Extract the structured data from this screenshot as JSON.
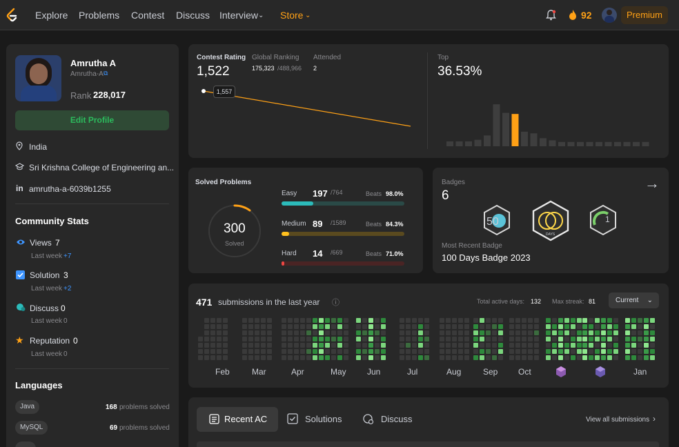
{
  "nav": {
    "items": [
      "Explore",
      "Problems",
      "Contest",
      "Discuss",
      "Interview",
      "Store"
    ],
    "streak": "92",
    "premium": "Premium"
  },
  "profile": {
    "name": "Amrutha A",
    "username": "Amrutha-A",
    "rank_label": "Rank",
    "rank": "228,017",
    "edit_button": "Edit Profile",
    "location": "India",
    "school": "Sri Krishna College of Engineering an...",
    "linkedin": "amrutha-a-6039b1255"
  },
  "community": {
    "title": "Community Stats",
    "stats": [
      {
        "label": "Views",
        "value": "7",
        "week_label": "Last week",
        "week": "+7"
      },
      {
        "label": "Solution",
        "value": "3",
        "week_label": "Last week",
        "week": "+2"
      },
      {
        "label": "Discuss",
        "value": "0",
        "week_label": "Last week",
        "week": "0"
      },
      {
        "label": "Reputation",
        "value": "0",
        "week_label": "Last week",
        "week": "0"
      }
    ]
  },
  "languages": {
    "title": "Languages",
    "items": [
      {
        "name": "Java",
        "count": "168",
        "suffix": "problems solved"
      },
      {
        "name": "MySQL",
        "count": "69",
        "suffix": "problems solved"
      }
    ]
  },
  "contest": {
    "rating_label": "Contest Rating",
    "rating": "1,522",
    "global_label": "Global Ranking",
    "global_rank": "175,323",
    "global_total": "/488,966",
    "attended_label": "Attended",
    "attended": "2",
    "tooltip": "1,557",
    "top_label": "Top",
    "top_value": "36.53%",
    "histogram_heights": [
      0.09,
      0.09,
      0.09,
      0.12,
      0.2,
      0.78,
      0.62,
      0.6,
      0.27,
      0.24,
      0.15,
      0.11,
      0.08,
      0.08,
      0.08,
      0.08,
      0.08,
      0.08,
      0.08,
      0.08,
      0.08,
      0.08
    ],
    "histogram_highlight": 7
  },
  "solved": {
    "title": "Solved Problems",
    "total": "300",
    "total_label": "Solved",
    "difficulties": [
      {
        "name": "Easy",
        "solved": "197",
        "total": "/764",
        "beats_label": "Beats",
        "beats": "98.0%",
        "fraction": 0.26,
        "color": "#2cbbba",
        "track": "#2a4a47"
      },
      {
        "name": "Medium",
        "solved": "89",
        "total": "/1589",
        "beats_label": "Beats",
        "beats": "84.3%",
        "fraction": 0.06,
        "color": "#ffc01e",
        "track": "#5a4a1f"
      },
      {
        "name": "Hard",
        "solved": "14",
        "total": "/669",
        "beats_label": "Beats",
        "beats": "71.0%",
        "fraction": 0.02,
        "color": "#ef4743",
        "track": "#4a2424"
      }
    ]
  },
  "badges": {
    "title": "Badges",
    "count": "6",
    "recent_label": "Most Recent Badge",
    "recent": "100 Days Badge 2023",
    "badge_labels": [
      "50",
      "DAYS",
      "1"
    ]
  },
  "submissions": {
    "count": "471",
    "label": "submissions in the last year",
    "active_label": "Total active days:",
    "active": "132",
    "streak_label": "Max streak:",
    "streak": "81",
    "dropdown": "Current",
    "months": [
      "Feb",
      "Mar",
      "Apr",
      "May",
      "Jun",
      "Jul",
      "Aug",
      "Sep",
      "Oct",
      "",
      "",
      "Jan"
    ]
  },
  "tabs": {
    "recent": "Recent AC",
    "solutions": "Solutions",
    "discuss": "Discuss",
    "view_all": "View all submissions"
  }
}
